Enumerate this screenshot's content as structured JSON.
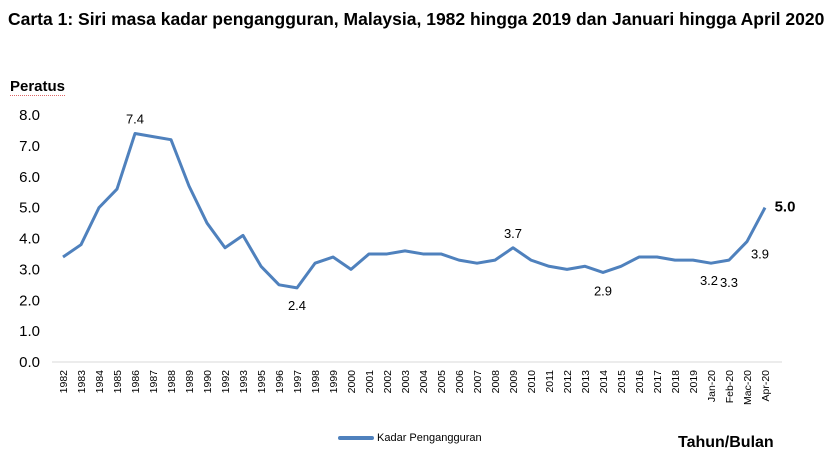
{
  "chart_data": {
    "type": "line",
    "title": "Carta 1: Siri masa kadar pengangguran, Malaysia, 1982 hingga 2019 dan Januari hingga April 2020",
    "ylabel": "Peratus",
    "xlabel": "Tahun/Bulan",
    "ylim": [
      0,
      8
    ],
    "yticks": [
      "0.0",
      "1.0",
      "2.0",
      "3.0",
      "4.0",
      "5.0",
      "6.0",
      "7.0",
      "8.0"
    ],
    "grid": false,
    "legend": "bottom",
    "categories": [
      "1982",
      "1983",
      "1984",
      "1985",
      "1986",
      "1987",
      "1988",
      "1989",
      "1990",
      "1992",
      "1993",
      "1995",
      "1996",
      "1997",
      "1998",
      "1999",
      "2000",
      "2001",
      "2002",
      "2003",
      "2004",
      "2005",
      "2006",
      "2007",
      "2008",
      "2009",
      "2010",
      "2011",
      "2012",
      "2013",
      "2014",
      "2015",
      "2016",
      "2017",
      "2018",
      "2019",
      "Jan-20",
      "Feb-20",
      "Mac-20",
      "Apr-20"
    ],
    "series": [
      {
        "name": "Kadar Pengangguran",
        "color": "#4f81bd",
        "values": [
          3.4,
          3.8,
          5.0,
          5.6,
          7.4,
          7.3,
          7.2,
          5.7,
          4.5,
          3.7,
          4.1,
          3.1,
          2.5,
          2.4,
          3.2,
          3.4,
          3.0,
          3.5,
          3.5,
          3.6,
          3.5,
          3.5,
          3.3,
          3.2,
          3.3,
          3.7,
          3.3,
          3.1,
          3.0,
          3.1,
          2.9,
          3.1,
          3.4,
          3.4,
          3.3,
          3.3,
          3.2,
          3.3,
          3.9,
          5.0
        ]
      }
    ],
    "data_labels": [
      {
        "category": "1986",
        "text": "7.4"
      },
      {
        "category": "1997",
        "text": "2.4"
      },
      {
        "category": "2009",
        "text": "3.7"
      },
      {
        "category": "2014",
        "text": "2.9"
      },
      {
        "category": "Jan-20",
        "text": "3.2"
      },
      {
        "category": "Feb-20",
        "text": "3.3"
      },
      {
        "category": "Mac-20",
        "text": "3.9"
      },
      {
        "category": "Apr-20",
        "text": "5.0"
      }
    ]
  }
}
